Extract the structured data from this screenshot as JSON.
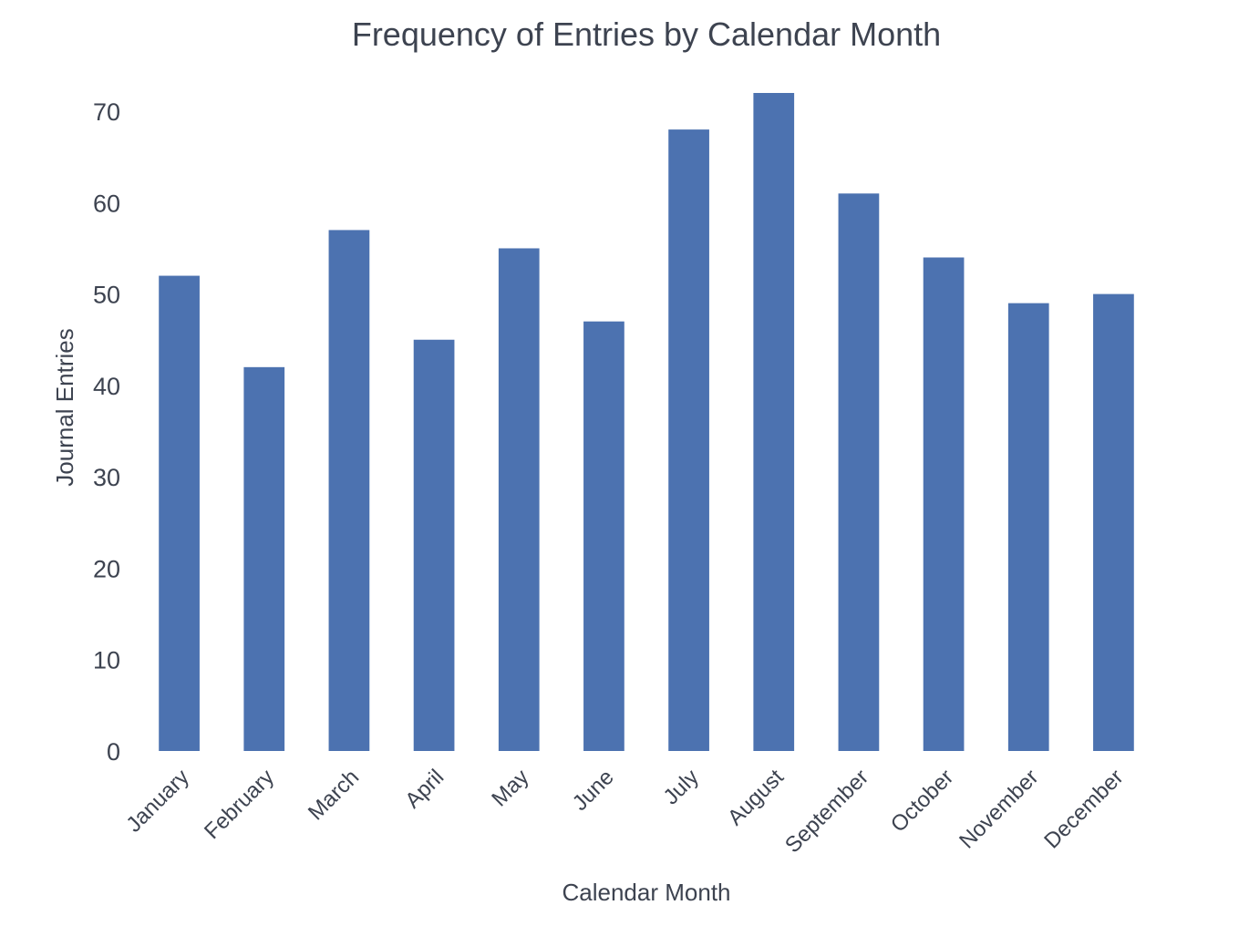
{
  "chart_data": {
    "type": "bar",
    "title": "Frequency of Entries by Calendar Month",
    "xlabel": "Calendar Month",
    "ylabel": "Journal Entries",
    "categories": [
      "January",
      "February",
      "March",
      "April",
      "May",
      "June",
      "July",
      "August",
      "September",
      "October",
      "November",
      "December"
    ],
    "values": [
      52,
      42,
      57,
      45,
      55,
      47,
      68,
      72,
      61,
      54,
      49,
      50
    ],
    "yticks": [
      0,
      10,
      20,
      30,
      40,
      50,
      60,
      70
    ],
    "ylim": [
      0,
      72
    ],
    "grid": false,
    "legend": "none",
    "bar_color": "#4c72b0",
    "xtick_rotation_deg": 45
  }
}
